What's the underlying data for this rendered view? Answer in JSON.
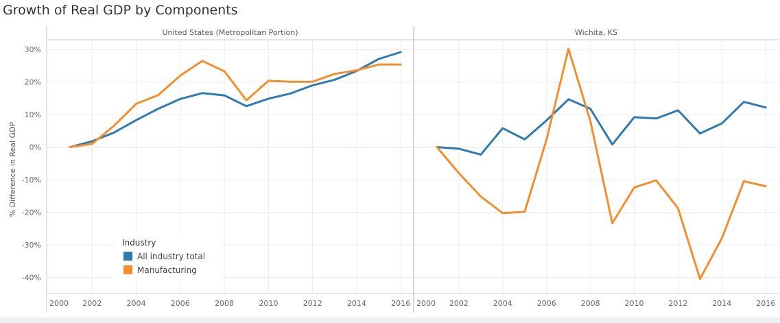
{
  "title": "Growth of Real GDP by Components",
  "colors": {
    "all_industry": "#2e7bb0",
    "manufacturing": "#f28e2b",
    "grid": "#ececec",
    "axis": "#c8c8c8"
  },
  "chart_data": {
    "type": "line",
    "ylabel": "% Difference in Real GDP",
    "ylim": [
      -45,
      33
    ],
    "yticks": [
      30,
      20,
      10,
      0,
      -10,
      -20,
      -30,
      -40
    ],
    "ytick_labels": [
      "30%",
      "20%",
      "10%",
      "0%",
      "-10%",
      "-20%",
      "-30%",
      "-40%"
    ],
    "xlim": [
      2000,
      2016.4
    ],
    "xticks": [
      2000,
      2002,
      2004,
      2006,
      2008,
      2010,
      2012,
      2014,
      2016
    ],
    "xtick_labels": [
      "2000",
      "2002",
      "2004",
      "2006",
      "2008",
      "2010",
      "2012",
      "2014",
      "2016"
    ],
    "legend": {
      "title": "Industry",
      "entries": [
        "All industry total",
        "Manufacturing"
      ],
      "placement": "bottom-left"
    },
    "grid": true,
    "x": [
      2001,
      2002,
      2003,
      2004,
      2005,
      2006,
      2007,
      2008,
      2009,
      2010,
      2011,
      2012,
      2013,
      2014,
      2015,
      2016
    ],
    "panels": [
      {
        "header": "United States (Metropolitan Portion)",
        "series": [
          {
            "name": "All industry total",
            "values": [
              0,
              1.8,
              4.5,
              8.3,
              11.8,
              14.8,
              16.6,
              15.9,
              12.6,
              14.9,
              16.5,
              19.0,
              20.7,
              23.4,
              27.1,
              29.2
            ]
          },
          {
            "name": "Manufacturing",
            "values": [
              0,
              1.0,
              6.6,
              13.3,
              16.0,
              22.0,
              26.5,
              23.3,
              14.4,
              20.4,
              20.1,
              20.1,
              22.5,
              23.6,
              25.4,
              25.4
            ]
          }
        ]
      },
      {
        "header": "Wichita, KS",
        "series": [
          {
            "name": "All industry total",
            "values": [
              0,
              -0.5,
              -2.3,
              5.8,
              2.4,
              8.2,
              14.7,
              11.8,
              0.8,
              9.2,
              8.8,
              11.3,
              4.2,
              7.3,
              13.9,
              12.2
            ]
          },
          {
            "name": "Manufacturing",
            "values": [
              0,
              -8.0,
              -15.2,
              -20.3,
              -19.9,
              2.3,
              30.2,
              8.0,
              -23.4,
              -12.4,
              -10.2,
              -18.8,
              -40.5,
              -28.0,
              -10.5,
              -12.0
            ]
          }
        ]
      }
    ]
  }
}
